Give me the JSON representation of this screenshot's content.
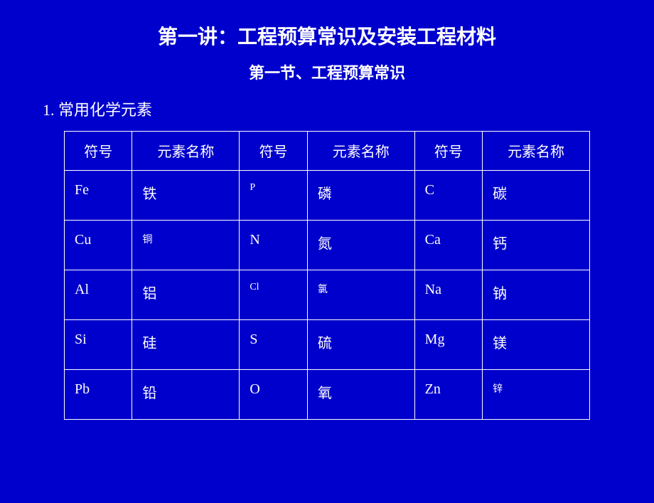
{
  "title": "第一讲：工程预算常识及安装工程材料",
  "subtitle": "第一节、工程预算常识",
  "section_heading": "1. 常用化学元素",
  "table": {
    "headers": [
      "符号",
      "元素名称",
      "符号",
      "元素名称",
      "符号",
      "元素名称"
    ],
    "rows": [
      {
        "c1": "Fe",
        "c2": "铁",
        "c3": "P",
        "c3_small": true,
        "c4": "磷",
        "c5": "C",
        "c6": "碳"
      },
      {
        "c1": "Cu",
        "c2": "铜",
        "c2_small": true,
        "c3": "N",
        "c4": "氮",
        "c5": "Ca",
        "c6": "钙"
      },
      {
        "c1": "Al",
        "c2": "铝",
        "c3": "Cl",
        "c3_small": true,
        "c4": "氯",
        "c4_small": true,
        "c5": "Na",
        "c6": "钠"
      },
      {
        "c1": "Si",
        "c2": "硅",
        "c3": "S",
        "c4": "硫",
        "c5": "Mg",
        "c6": "镁"
      },
      {
        "c1": "Pb",
        "c2": "铅",
        "c3": "O",
        "c4": "氧",
        "c5": "Zn",
        "c6": "锌",
        "c6_small": true
      }
    ]
  },
  "colors": {
    "background": "#0000cc",
    "text": "#ffffff",
    "border": "#ffffff"
  }
}
